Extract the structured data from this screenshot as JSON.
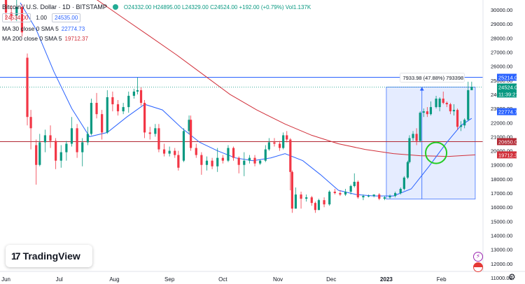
{
  "header": {
    "title": "Bitcoin / U.S. Dollar · 1D · BITSTAMP",
    "ohlc": "O24332.00 H24895.00 L24329.00 C24524.00 +192.00 (+0.79%) Vol1.137K",
    "bid": "24534.00",
    "qty": "1.00",
    "ask": "24535.00"
  },
  "indicators": [
    {
      "label": "MA 30 close 0 SMA 5",
      "value": "22774.73",
      "color": "#2962ff"
    },
    {
      "label": "MA 200 close 0 SMA 5",
      "value": "19712.37",
      "color": "#d1303a"
    }
  ],
  "logo": {
    "text": "TradingView",
    "mark": "17"
  },
  "chart_data": {
    "type": "candlestick",
    "title": "Bitcoin / U.S. Dollar · 1D · BITSTAMP",
    "y_ticks": [
      30000,
      29000,
      28000,
      27000,
      26000,
      25000,
      24000,
      23000,
      22000,
      21000,
      20000,
      19000,
      18000,
      17000,
      16000,
      15000,
      14000,
      13000,
      12000,
      11000
    ],
    "y_tick_labels": [
      "30000.00",
      "29000.00",
      "28000.00",
      "27000.00",
      "26000.00",
      "25000.00",
      "24000.00",
      "23000.00",
      "22000.00",
      "21000.00",
      "20000.00",
      "19000.00",
      "18000.00",
      "17000.00",
      "16000.00",
      "15000.00",
      "14000.00",
      "13000.00",
      "12000.00",
      "11000.00"
    ],
    "ylim": [
      11000,
      30000
    ],
    "y_scale": "linear",
    "x_labels": [
      "Jun",
      "Jul",
      "Aug",
      "Sep",
      "Oct",
      "Nov",
      "Dec",
      "2023",
      "Feb"
    ],
    "x_label_dates": [
      "2022-06-01",
      "2022-07-01",
      "2022-08-01",
      "2022-09-01",
      "2022-10-01",
      "2022-11-01",
      "2022-12-01",
      "2023-01-01",
      "2023-02-01"
    ],
    "x_range": [
      "2022-05-31",
      "2023-02-22"
    ],
    "grid": false,
    "horizontal_lines": [
      {
        "price": 25214.0,
        "label": "25214.00",
        "color": "#2962ff"
      },
      {
        "price": 20650.0,
        "label": "20650.00",
        "color": "#b22833"
      }
    ],
    "price_labels": [
      {
        "price": 24524.0,
        "text": "24524.00",
        "sub": "11:39:21",
        "color": "#089981"
      },
      {
        "price": 22774.73,
        "text": "22774.73",
        "color": "#2962ff"
      },
      {
        "price": 19712.37,
        "text": "19712.37",
        "color": "#d1303a"
      }
    ],
    "measure": {
      "from_date": "2023-01-01",
      "to_date": "2023-02-20",
      "low": 16580,
      "high": 24520,
      "label": "7933.98 (47.88%) 793398",
      "arrow_date": "2023-01-21"
    },
    "circle": {
      "date": "2023-01-29",
      "price": 19850,
      "color": "#22cc22"
    },
    "candles": [
      {
        "d": "2022-06-01",
        "o": 31700,
        "h": 31900,
        "c": 29800,
        "l": 29300
      },
      {
        "d": "2022-06-04",
        "o": 29800,
        "h": 30300,
        "c": 29600,
        "l": 29200
      },
      {
        "d": "2022-06-07",
        "o": 29600,
        "h": 31500,
        "c": 30200,
        "l": 29200
      },
      {
        "d": "2022-06-10",
        "o": 30200,
        "h": 30400,
        "c": 28400,
        "l": 28100
      },
      {
        "d": "2022-06-13",
        "o": 26600,
        "h": 26900,
        "c": 22400,
        "l": 21800
      },
      {
        "d": "2022-06-15",
        "o": 22400,
        "h": 22900,
        "c": 21600,
        "l": 20100
      },
      {
        "d": "2022-06-18",
        "o": 20400,
        "h": 20800,
        "c": 19000,
        "l": 17600
      },
      {
        "d": "2022-06-20",
        "o": 19000,
        "h": 21200,
        "c": 20600,
        "l": 18900
      },
      {
        "d": "2022-06-23",
        "o": 20600,
        "h": 21500,
        "c": 21100,
        "l": 19900
      },
      {
        "d": "2022-06-26",
        "o": 21100,
        "h": 21800,
        "c": 20700,
        "l": 20200
      },
      {
        "d": "2022-06-29",
        "o": 20700,
        "h": 20900,
        "c": 19300,
        "l": 18700
      },
      {
        "d": "2022-07-02",
        "o": 19300,
        "h": 20400,
        "c": 19900,
        "l": 18800
      },
      {
        "d": "2022-07-05",
        "o": 19900,
        "h": 20700,
        "c": 20500,
        "l": 19300
      },
      {
        "d": "2022-07-08",
        "o": 20500,
        "h": 22400,
        "c": 21600,
        "l": 20300
      },
      {
        "d": "2022-07-11",
        "o": 21600,
        "h": 21900,
        "c": 19900,
        "l": 19500
      },
      {
        "d": "2022-07-14",
        "o": 19900,
        "h": 20900,
        "c": 20600,
        "l": 18900
      },
      {
        "d": "2022-07-17",
        "o": 20600,
        "h": 21700,
        "c": 21200,
        "l": 20400
      },
      {
        "d": "2022-07-19",
        "o": 21200,
        "h": 23700,
        "c": 23400,
        "l": 21100
      },
      {
        "d": "2022-07-22",
        "o": 23400,
        "h": 24100,
        "c": 22600,
        "l": 22300
      },
      {
        "d": "2022-07-25",
        "o": 22600,
        "h": 22900,
        "c": 21300,
        "l": 20800
      },
      {
        "d": "2022-07-28",
        "o": 21300,
        "h": 24300,
        "c": 23800,
        "l": 21200
      },
      {
        "d": "2022-07-31",
        "o": 23800,
        "h": 24200,
        "c": 23300,
        "l": 22800
      },
      {
        "d": "2022-08-03",
        "o": 23300,
        "h": 23600,
        "c": 22800,
        "l": 22500
      },
      {
        "d": "2022-08-06",
        "o": 22800,
        "h": 23400,
        "c": 23100,
        "l": 22600
      },
      {
        "d": "2022-08-09",
        "o": 23100,
        "h": 24200,
        "c": 23900,
        "l": 22700
      },
      {
        "d": "2022-08-12",
        "o": 23900,
        "h": 24400,
        "c": 24200,
        "l": 23700
      },
      {
        "d": "2022-08-14",
        "o": 24200,
        "h": 25200,
        "c": 24300,
        "l": 24000
      },
      {
        "d": "2022-08-16",
        "o": 24300,
        "h": 24500,
        "c": 23400,
        "l": 23200
      },
      {
        "d": "2022-08-18",
        "o": 23400,
        "h": 23600,
        "c": 21300,
        "l": 20900
      },
      {
        "d": "2022-08-21",
        "o": 21300,
        "h": 21700,
        "c": 21200,
        "l": 20800
      },
      {
        "d": "2022-08-24",
        "o": 21200,
        "h": 21900,
        "c": 21600,
        "l": 21000
      },
      {
        "d": "2022-08-26",
        "o": 21600,
        "h": 21900,
        "c": 20100,
        "l": 19900
      },
      {
        "d": "2022-08-29",
        "o": 20100,
        "h": 20500,
        "c": 19800,
        "l": 19600
      },
      {
        "d": "2022-09-01",
        "o": 19800,
        "h": 20300,
        "c": 20000,
        "l": 19600
      },
      {
        "d": "2022-09-04",
        "o": 20000,
        "h": 20200,
        "c": 19700,
        "l": 19500
      },
      {
        "d": "2022-09-06",
        "o": 19700,
        "h": 20000,
        "c": 18800,
        "l": 18600
      },
      {
        "d": "2022-09-09",
        "o": 19300,
        "h": 21600,
        "c": 21400,
        "l": 19200
      },
      {
        "d": "2022-09-12",
        "o": 21400,
        "h": 22500,
        "c": 22200,
        "l": 21200
      },
      {
        "d": "2022-09-13",
        "o": 22200,
        "h": 22500,
        "c": 20200,
        "l": 20000
      },
      {
        "d": "2022-09-16",
        "o": 20200,
        "h": 20500,
        "c": 19700,
        "l": 19500
      },
      {
        "d": "2022-09-19",
        "o": 19700,
        "h": 19900,
        "c": 19000,
        "l": 18300
      },
      {
        "d": "2022-09-22",
        "o": 19000,
        "h": 19600,
        "c": 19300,
        "l": 18600
      },
      {
        "d": "2022-09-25",
        "o": 19300,
        "h": 19500,
        "c": 18900,
        "l": 18700
      },
      {
        "d": "2022-09-28",
        "o": 18900,
        "h": 20200,
        "c": 19500,
        "l": 18500
      },
      {
        "d": "2022-10-01",
        "o": 19500,
        "h": 19700,
        "c": 19300,
        "l": 19100
      },
      {
        "d": "2022-10-04",
        "o": 19300,
        "h": 20400,
        "c": 20200,
        "l": 19200
      },
      {
        "d": "2022-10-07",
        "o": 20200,
        "h": 20300,
        "c": 19500,
        "l": 19300
      },
      {
        "d": "2022-10-10",
        "o": 19500,
        "h": 19600,
        "c": 19000,
        "l": 18400
      },
      {
        "d": "2022-10-13",
        "o": 19000,
        "h": 19900,
        "c": 19300,
        "l": 18200
      },
      {
        "d": "2022-10-16",
        "o": 19300,
        "h": 19700,
        "c": 19500,
        "l": 19100
      },
      {
        "d": "2022-10-19",
        "o": 19500,
        "h": 19700,
        "c": 19100,
        "l": 18900
      },
      {
        "d": "2022-10-22",
        "o": 19100,
        "h": 19400,
        "c": 19300,
        "l": 19000
      },
      {
        "d": "2022-10-25",
        "o": 19300,
        "h": 20400,
        "c": 20100,
        "l": 19200
      },
      {
        "d": "2022-10-27",
        "o": 20100,
        "h": 20900,
        "c": 20600,
        "l": 20000
      },
      {
        "d": "2022-10-30",
        "o": 20600,
        "h": 20900,
        "c": 20500,
        "l": 20300
      },
      {
        "d": "2022-11-02",
        "o": 20500,
        "h": 20700,
        "c": 20200,
        "l": 20000
      },
      {
        "d": "2022-11-04",
        "o": 20200,
        "h": 21300,
        "c": 21100,
        "l": 20100
      },
      {
        "d": "2022-11-06",
        "o": 21100,
        "h": 21400,
        "c": 20800,
        "l": 20600
      },
      {
        "d": "2022-11-08",
        "o": 20800,
        "h": 20900,
        "c": 18500,
        "l": 17200
      },
      {
        "d": "2022-11-09",
        "o": 18500,
        "h": 18600,
        "c": 15900,
        "l": 15600
      },
      {
        "d": "2022-11-11",
        "o": 15900,
        "h": 17400,
        "c": 16900,
        "l": 15900
      },
      {
        "d": "2022-11-14",
        "o": 16900,
        "h": 17100,
        "c": 16600,
        "l": 15900
      },
      {
        "d": "2022-11-17",
        "o": 16600,
        "h": 16900,
        "c": 16700,
        "l": 16400
      },
      {
        "d": "2022-11-20",
        "o": 16700,
        "h": 16800,
        "c": 16300,
        "l": 16100
      },
      {
        "d": "2022-11-22",
        "o": 16300,
        "h": 16400,
        "c": 15800,
        "l": 15600
      },
      {
        "d": "2022-11-24",
        "o": 15800,
        "h": 16600,
        "c": 16500,
        "l": 15800
      },
      {
        "d": "2022-11-27",
        "o": 16500,
        "h": 16700,
        "c": 16200,
        "l": 16000
      },
      {
        "d": "2022-11-30",
        "o": 16200,
        "h": 17200,
        "c": 17100,
        "l": 16100
      },
      {
        "d": "2022-12-03",
        "o": 17100,
        "h": 17300,
        "c": 17000,
        "l": 16900
      },
      {
        "d": "2022-12-06",
        "o": 17000,
        "h": 17200,
        "c": 16900,
        "l": 16800
      },
      {
        "d": "2022-12-09",
        "o": 16900,
        "h": 17300,
        "c": 17100,
        "l": 16800
      },
      {
        "d": "2022-12-12",
        "o": 17100,
        "h": 17600,
        "c": 17500,
        "l": 16900
      },
      {
        "d": "2022-12-14",
        "o": 17500,
        "h": 18400,
        "c": 17800,
        "l": 17400
      },
      {
        "d": "2022-12-16",
        "o": 17800,
        "h": 17900,
        "c": 16700,
        "l": 16600
      },
      {
        "d": "2022-12-19",
        "o": 16700,
        "h": 16900,
        "c": 16800,
        "l": 16500
      },
      {
        "d": "2022-12-22",
        "o": 16800,
        "h": 16900,
        "c": 16800,
        "l": 16700
      },
      {
        "d": "2022-12-25",
        "o": 16800,
        "h": 16900,
        "c": 16900,
        "l": 16700
      },
      {
        "d": "2022-12-28",
        "o": 16900,
        "h": 17000,
        "c": 16600,
        "l": 16500
      },
      {
        "d": "2022-12-31",
        "o": 16600,
        "h": 16800,
        "c": 16700,
        "l": 16500
      },
      {
        "d": "2023-01-03",
        "o": 16700,
        "h": 16900,
        "c": 16800,
        "l": 16600
      },
      {
        "d": "2023-01-06",
        "o": 16800,
        "h": 17100,
        "c": 17000,
        "l": 16700
      },
      {
        "d": "2023-01-09",
        "o": 17000,
        "h": 17400,
        "c": 17300,
        "l": 16900
      },
      {
        "d": "2023-01-11",
        "o": 17300,
        "h": 18200,
        "c": 18100,
        "l": 17200
      },
      {
        "d": "2023-01-13",
        "o": 18100,
        "h": 19300,
        "c": 19200,
        "l": 18000
      },
      {
        "d": "2023-01-14",
        "o": 19200,
        "h": 21100,
        "c": 20900,
        "l": 19100
      },
      {
        "d": "2023-01-16",
        "o": 20900,
        "h": 21400,
        "c": 21200,
        "l": 20700
      },
      {
        "d": "2023-01-18",
        "o": 21200,
        "h": 21600,
        "c": 20700,
        "l": 20400
      },
      {
        "d": "2023-01-20",
        "o": 20700,
        "h": 22800,
        "c": 22700,
        "l": 20600
      },
      {
        "d": "2023-01-22",
        "o": 22700,
        "h": 23000,
        "c": 22800,
        "l": 22400
      },
      {
        "d": "2023-01-24",
        "o": 22800,
        "h": 23100,
        "c": 22600,
        "l": 22400
      },
      {
        "d": "2023-01-26",
        "o": 22600,
        "h": 23500,
        "c": 23100,
        "l": 22500
      },
      {
        "d": "2023-01-29",
        "o": 23100,
        "h": 23900,
        "c": 23700,
        "l": 23000
      },
      {
        "d": "2023-01-31",
        "o": 23100,
        "h": 23800,
        "c": 23700,
        "l": 22800
      },
      {
        "d": "2023-02-02",
        "o": 23700,
        "h": 24200,
        "c": 23400,
        "l": 23300
      },
      {
        "d": "2023-02-04",
        "o": 23400,
        "h": 23500,
        "c": 23300,
        "l": 23100
      },
      {
        "d": "2023-02-06",
        "o": 23300,
        "h": 23400,
        "c": 22800,
        "l": 22600
      },
      {
        "d": "2023-02-08",
        "o": 22800,
        "h": 23300,
        "c": 22900,
        "l": 22500
      },
      {
        "d": "2023-02-10",
        "o": 22900,
        "h": 23000,
        "c": 21700,
        "l": 21500
      },
      {
        "d": "2023-02-12",
        "o": 21700,
        "h": 22100,
        "c": 21800,
        "l": 21400
      },
      {
        "d": "2023-02-14",
        "o": 21800,
        "h": 22300,
        "c": 22200,
        "l": 21600
      },
      {
        "d": "2023-02-16",
        "o": 22200,
        "h": 24900,
        "c": 24300,
        "l": 22100
      },
      {
        "d": "2023-02-18",
        "o": 24300,
        "h": 24900,
        "c": 24524,
        "l": 24329
      }
    ],
    "ma30": [
      {
        "d": "2022-06-09",
        "v": 30500
      },
      {
        "d": "2022-06-18",
        "v": 28600
      },
      {
        "d": "2022-06-28",
        "v": 25600
      },
      {
        "d": "2022-07-08",
        "v": 23000
      },
      {
        "d": "2022-07-18",
        "v": 21000
      },
      {
        "d": "2022-07-28",
        "v": 21300
      },
      {
        "d": "2022-08-08",
        "v": 22400
      },
      {
        "d": "2022-08-18",
        "v": 23300
      },
      {
        "d": "2022-08-28",
        "v": 22900
      },
      {
        "d": "2022-09-08",
        "v": 21600
      },
      {
        "d": "2022-09-18",
        "v": 20600
      },
      {
        "d": "2022-09-28",
        "v": 20000
      },
      {
        "d": "2022-10-08",
        "v": 19500
      },
      {
        "d": "2022-10-18",
        "v": 19300
      },
      {
        "d": "2022-10-28",
        "v": 19500
      },
      {
        "d": "2022-11-05",
        "v": 19800
      },
      {
        "d": "2022-11-15",
        "v": 19300
      },
      {
        "d": "2022-11-25",
        "v": 18300
      },
      {
        "d": "2022-12-05",
        "v": 17200
      },
      {
        "d": "2022-12-15",
        "v": 16900
      },
      {
        "d": "2022-12-25",
        "v": 16800
      },
      {
        "d": "2023-01-05",
        "v": 16800
      },
      {
        "d": "2023-01-15",
        "v": 17300
      },
      {
        "d": "2023-01-25",
        "v": 18900
      },
      {
        "d": "2023-02-04",
        "v": 20600
      },
      {
        "d": "2023-02-12",
        "v": 21800
      },
      {
        "d": "2023-02-18",
        "v": 22300
      }
    ],
    "ma200": [
      {
        "d": "2022-06-20",
        "v": 33600
      },
      {
        "d": "2022-07-05",
        "v": 32300
      },
      {
        "d": "2022-07-20",
        "v": 30900
      },
      {
        "d": "2022-08-05",
        "v": 29500
      },
      {
        "d": "2022-08-20",
        "v": 28200
      },
      {
        "d": "2022-09-05",
        "v": 26800
      },
      {
        "d": "2022-09-20",
        "v": 25400
      },
      {
        "d": "2022-10-05",
        "v": 24000
      },
      {
        "d": "2022-10-20",
        "v": 22900
      },
      {
        "d": "2022-11-05",
        "v": 21900
      },
      {
        "d": "2022-11-20",
        "v": 21100
      },
      {
        "d": "2022-12-05",
        "v": 20500
      },
      {
        "d": "2022-12-20",
        "v": 20100
      },
      {
        "d": "2023-01-05",
        "v": 19800
      },
      {
        "d": "2023-01-20",
        "v": 19650
      },
      {
        "d": "2023-02-05",
        "v": 19600
      },
      {
        "d": "2023-02-20",
        "v": 19710
      }
    ]
  }
}
